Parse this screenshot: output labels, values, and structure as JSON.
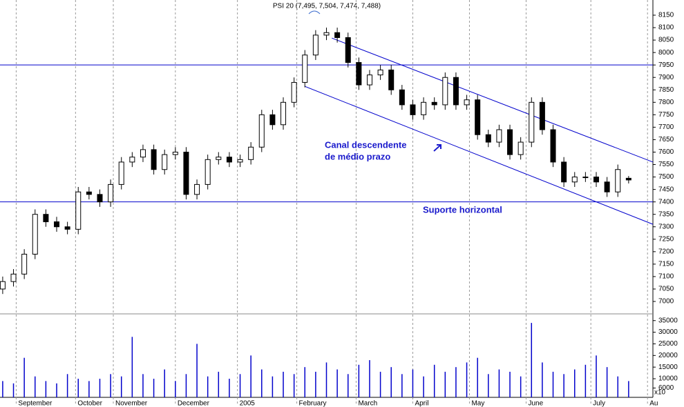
{
  "chart_data": {
    "type": "candlestick",
    "title": "PSI 20 (7,495, 7,504, 7,474, 7,488)",
    "x": [
      1,
      5,
      9,
      13,
      17,
      21,
      25,
      29,
      33,
      37,
      41,
      45,
      49,
      53,
      57,
      61,
      65,
      69,
      73,
      77,
      81,
      85,
      89,
      93,
      97,
      101,
      105,
      109,
      113,
      117,
      121,
      125,
      129,
      133,
      137,
      141,
      145,
      149,
      153,
      157,
      161,
      165,
      169,
      173,
      177,
      181,
      185,
      189,
      193,
      197,
      201,
      205,
      209,
      213,
      217,
      221,
      225,
      229,
      233
    ],
    "open": [
      7050,
      7080,
      7110,
      7190,
      7350,
      7320,
      7300,
      7290,
      7440,
      7430,
      7400,
      7470,
      7560,
      7580,
      7610,
      7530,
      7590,
      7600,
      7430,
      7470,
      7570,
      7580,
      7560,
      7570,
      7620,
      7750,
      7710,
      7800,
      7880,
      7990,
      8070,
      8080,
      8060,
      7960,
      7870,
      7910,
      7930,
      7850,
      7790,
      7750,
      7800,
      7790,
      7900,
      7790,
      7810,
      7670,
      7640,
      7690,
      7590,
      7640,
      7800,
      7690,
      7560,
      7480,
      7500,
      7500,
      7480,
      7440,
      7495
    ],
    "high": [
      7100,
      7130,
      7210,
      7370,
      7370,
      7340,
      7320,
      7460,
      7460,
      7450,
      7490,
      7580,
      7600,
      7630,
      7630,
      7610,
      7620,
      7620,
      7490,
      7590,
      7600,
      7600,
      7590,
      7640,
      7770,
      7770,
      7820,
      7900,
      8010,
      8090,
      8100,
      8100,
      8080,
      7980,
      7930,
      7950,
      7950,
      7870,
      7810,
      7820,
      7820,
      7920,
      7920,
      7830,
      7830,
      7690,
      7710,
      7710,
      7660,
      7820,
      7820,
      7710,
      7580,
      7520,
      7520,
      7520,
      7500,
      7550,
      7504
    ],
    "low": [
      7030,
      7060,
      7090,
      7170,
      7300,
      7280,
      7270,
      7270,
      7410,
      7380,
      7380,
      7450,
      7540,
      7560,
      7510,
      7510,
      7570,
      7410,
      7410,
      7450,
      7550,
      7540,
      7540,
      7550,
      7600,
      7690,
      7690,
      7780,
      7860,
      7970,
      8050,
      8040,
      7940,
      7850,
      7850,
      7890,
      7830,
      7770,
      7730,
      7730,
      7770,
      7770,
      7770,
      7770,
      7650,
      7620,
      7620,
      7570,
      7570,
      7620,
      7670,
      7540,
      7460,
      7460,
      7480,
      7460,
      7420,
      7420,
      7474
    ],
    "close": [
      7080,
      7110,
      7190,
      7350,
      7320,
      7300,
      7290,
      7440,
      7430,
      7400,
      7470,
      7560,
      7580,
      7610,
      7530,
      7590,
      7600,
      7430,
      7470,
      7570,
      7580,
      7560,
      7570,
      7620,
      7750,
      7710,
      7800,
      7880,
      7990,
      8070,
      8080,
      8060,
      7960,
      7870,
      7910,
      7930,
      7850,
      7790,
      7750,
      7800,
      7790,
      7900,
      7790,
      7810,
      7670,
      7640,
      7690,
      7590,
      7640,
      7800,
      7690,
      7560,
      7480,
      7500,
      7500,
      7480,
      7440,
      7530,
      7488
    ],
    "volume": [
      9000,
      8000,
      19000,
      11000,
      9000,
      8000,
      12000,
      10000,
      9000,
      10000,
      12000,
      11000,
      28000,
      12000,
      10000,
      14000,
      9000,
      12000,
      25000,
      11000,
      13000,
      10000,
      12000,
      20000,
      14000,
      11000,
      13000,
      12000,
      15000,
      13000,
      17000,
      14000,
      12000,
      16000,
      18000,
      13000,
      15000,
      12000,
      14000,
      11000,
      16000,
      13000,
      15000,
      17000,
      19000,
      12000,
      14000,
      13000,
      11000,
      34000,
      17000,
      13000,
      12000,
      14000,
      16000,
      20000,
      15000,
      11000,
      9000
    ],
    "volume_color": "#0000cc",
    "volume_unit_label": "x10",
    "xlim": [
      0,
      242
    ],
    "xticks": [
      {
        "value": 6,
        "label": "September"
      },
      {
        "value": 28,
        "label": "October"
      },
      {
        "value": 42,
        "label": "November"
      },
      {
        "value": 65,
        "label": "December"
      },
      {
        "value": 88,
        "label": "2005"
      },
      {
        "value": 110,
        "label": "February"
      },
      {
        "value": 132,
        "label": "March"
      },
      {
        "value": 153,
        "label": "April"
      },
      {
        "value": 174,
        "label": "May"
      },
      {
        "value": 195,
        "label": "June"
      },
      {
        "value": 219,
        "label": "July"
      },
      {
        "value": 240,
        "label": "Au"
      }
    ],
    "ylim": [
      6964,
      8211
    ],
    "yticks": [
      7000,
      7050,
      7100,
      7150,
      7200,
      7250,
      7300,
      7350,
      7400,
      7450,
      7500,
      7550,
      7600,
      7650,
      7700,
      7750,
      7800,
      7850,
      7900,
      7950,
      8000,
      8050,
      8100,
      8150
    ],
    "y2lim": [
      2000,
      37000
    ],
    "y2ticks": [
      6000,
      10000,
      15000,
      20000,
      25000,
      30000,
      35000
    ],
    "hlines": [
      7950,
      7400
    ],
    "trendlines": [
      {
        "x": [
          123,
          242
        ],
        "y": [
          8058,
          7560
        ]
      },
      {
        "x": [
          113,
          242
        ],
        "y": [
          7864,
          7310
        ]
      }
    ],
    "line_color": "#0000cc",
    "annotations": [
      "Canal descendente",
      "de médio prazo",
      "Suporte horizontal"
    ]
  }
}
